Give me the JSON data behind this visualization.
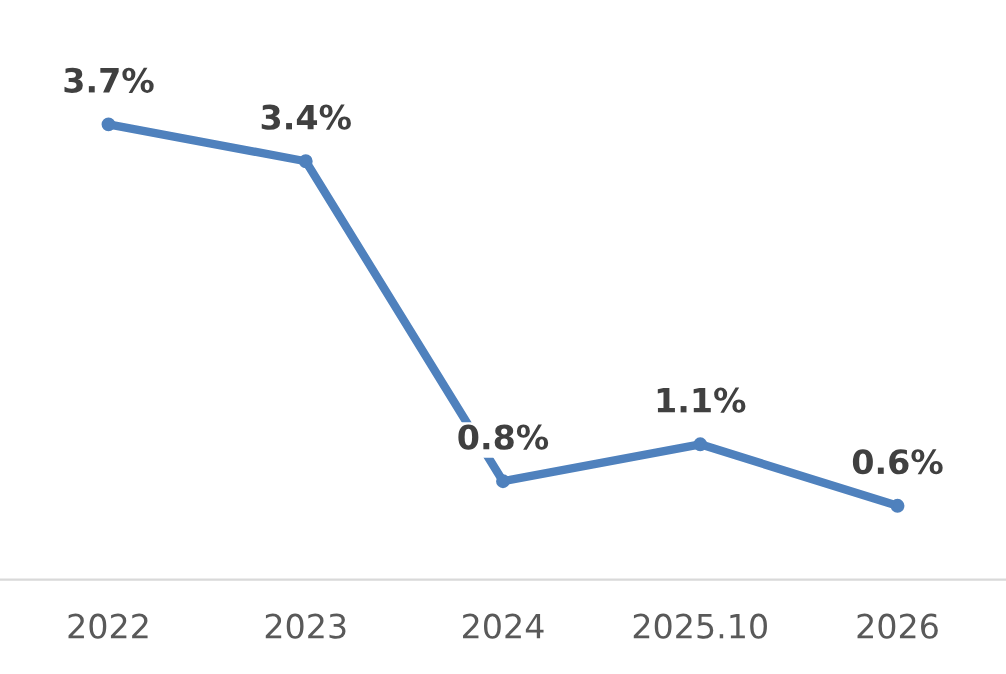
{
  "chart_data": {
    "type": "line",
    "categories": [
      "2022",
      "2023",
      "2024",
      "2025.10",
      "2026"
    ],
    "series": [
      {
        "color": "#4f81bd",
        "values": [
          3.7,
          3.4,
          0.8,
          1.1,
          0.6
        ],
        "value_labels": [
          "3.7%",
          "3.4%",
          "0.8%",
          "1.1%",
          "0.6%"
        ]
      }
    ],
    "marker": "circle",
    "grid": false,
    "legend": false
  }
}
